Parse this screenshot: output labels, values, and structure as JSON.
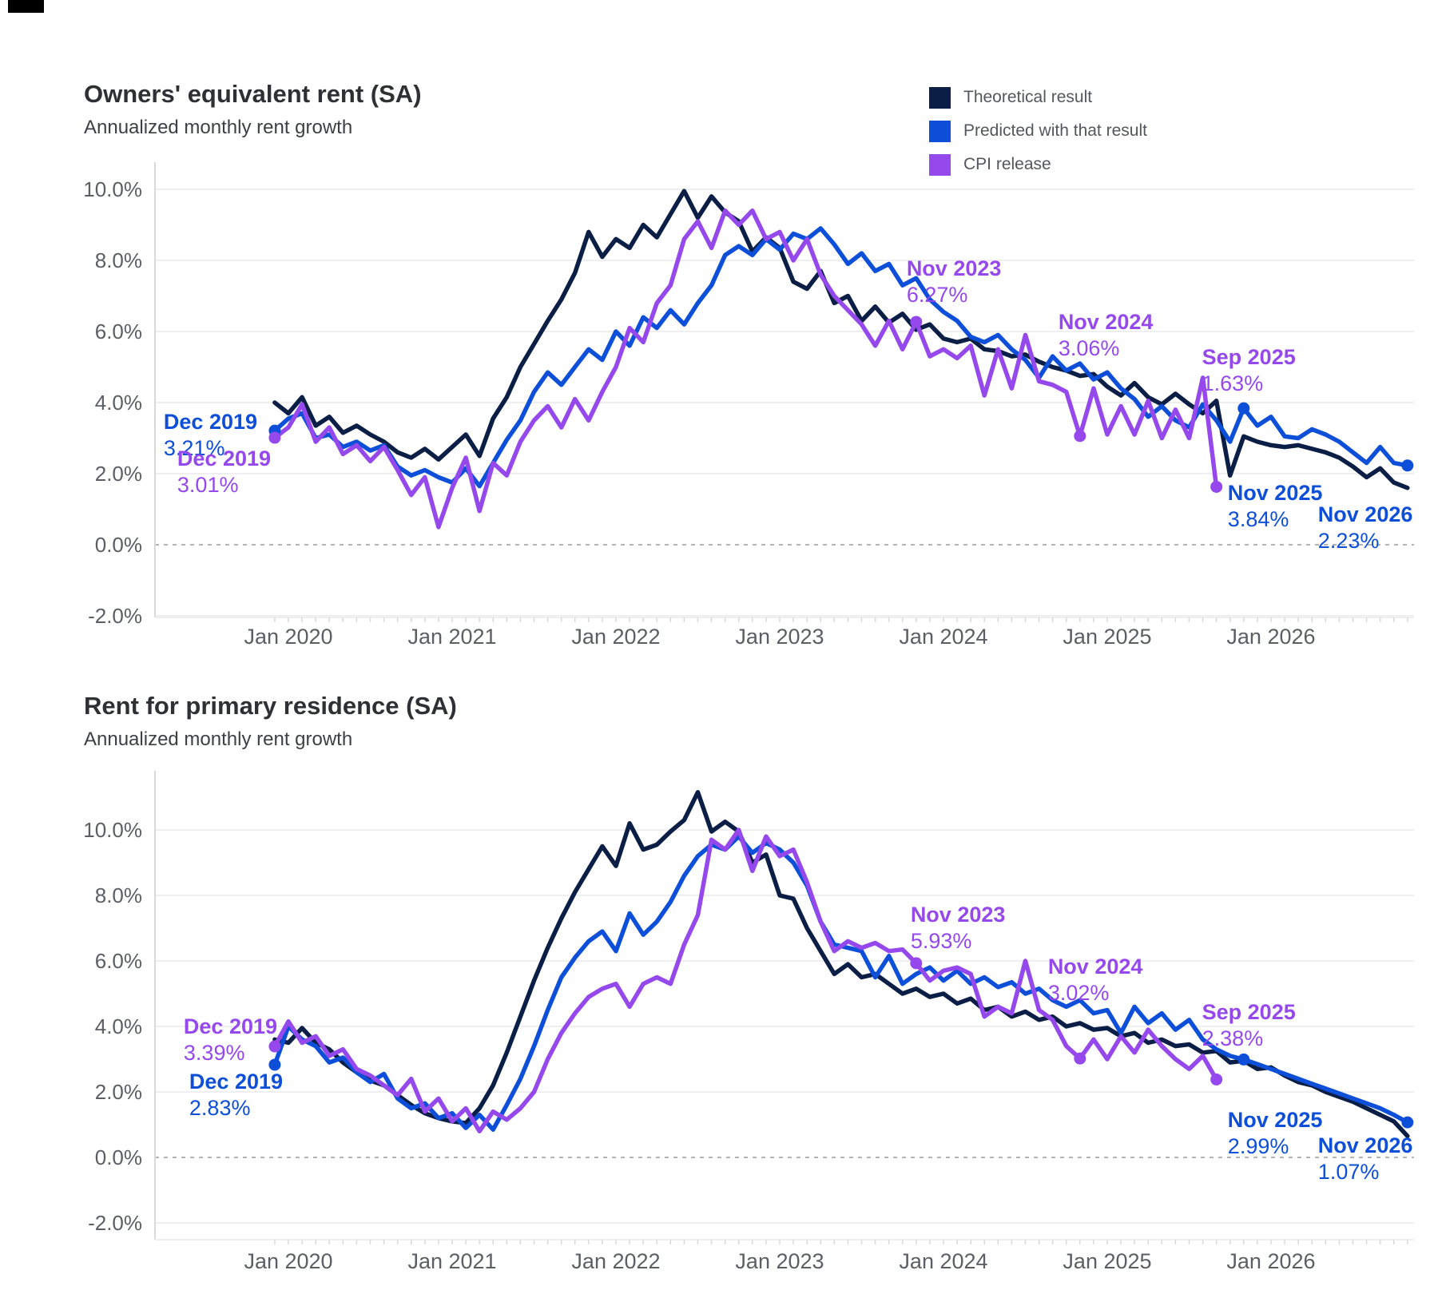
{
  "corner_mark": {
    "color": "#000000"
  },
  "legend": {
    "items": [
      {
        "key": "theoretical",
        "label": "Theoretical result",
        "color": "#0a1e46"
      },
      {
        "key": "predicted",
        "label": "Predicted with that result",
        "color": "#0d4fd9"
      },
      {
        "key": "cpi",
        "label": "CPI release",
        "color": "#9549ec"
      }
    ]
  },
  "axis_style": {
    "grid_color": "#efeff1",
    "zero_line_color": "#b3b3b8",
    "axis_line_color": "#d9d9dd",
    "tick_text_color": "#5b5e63"
  },
  "chart_data": [
    {
      "type": "line",
      "title": "Owners' equivalent rent (SA)",
      "subtitle": "Annualized monthly rent growth",
      "x_unit": "month",
      "x_start": "2019-12",
      "x_end": "2026-11",
      "x_tick_labels": [
        "Jan 2020",
        "Jan 2021",
        "Jan 2022",
        "Jan 2023",
        "Jan 2024",
        "Jan 2025",
        "Jan 2026"
      ],
      "y_tick_labels": [
        "10.0%",
        "8.0%",
        "6.0%",
        "4.0%",
        "2.0%",
        "0.0%",
        "-2.0%"
      ],
      "y_tick_values": [
        10,
        8,
        6,
        4,
        2,
        0,
        -2
      ],
      "ylim": [
        -2.5,
        11.0
      ],
      "grid": true,
      "zero_line": "dashed",
      "legend_position": "top-right",
      "series": [
        {
          "key": "theoretical",
          "name": "Theoretical result",
          "color": "#0a1e46",
          "values": [
            4.0,
            3.7,
            4.15,
            3.35,
            3.6,
            3.15,
            3.35,
            3.1,
            2.9,
            2.6,
            2.45,
            2.7,
            2.4,
            2.75,
            3.1,
            2.5,
            3.55,
            4.15,
            5.0,
            5.65,
            6.3,
            6.9,
            7.65,
            8.8,
            8.1,
            8.6,
            8.35,
            9.0,
            8.65,
            9.3,
            9.95,
            9.2,
            9.8,
            9.35,
            9.1,
            8.25,
            8.65,
            8.35,
            7.4,
            7.2,
            7.7,
            6.8,
            7.0,
            6.3,
            6.7,
            6.25,
            6.5,
            6.05,
            6.2,
            5.8,
            5.7,
            5.8,
            5.5,
            5.45,
            5.3,
            5.35,
            5.15,
            5.0,
            4.9,
            4.75,
            4.8,
            4.45,
            4.2,
            4.55,
            4.15,
            3.95,
            4.25,
            3.95,
            3.7,
            4.05,
            1.95,
            3.05,
            2.9,
            2.8,
            2.75,
            2.8,
            2.7,
            2.6,
            2.45,
            2.2,
            1.9,
            2.15,
            1.75,
            1.6
          ]
        },
        {
          "key": "predicted",
          "name": "Predicted with that result",
          "color": "#0d4fd9",
          "values": [
            3.21,
            3.55,
            3.7,
            3.0,
            3.1,
            2.75,
            2.9,
            2.65,
            2.8,
            2.2,
            1.95,
            2.1,
            1.9,
            1.75,
            2.15,
            1.65,
            2.3,
            2.95,
            3.5,
            4.3,
            4.85,
            4.5,
            5.0,
            5.5,
            5.2,
            6.0,
            5.6,
            6.4,
            6.1,
            6.6,
            6.2,
            6.8,
            7.3,
            8.15,
            8.4,
            8.15,
            8.6,
            8.3,
            8.75,
            8.6,
            8.9,
            8.45,
            7.9,
            8.2,
            7.7,
            7.9,
            7.3,
            7.5,
            6.9,
            6.55,
            6.3,
            5.85,
            5.7,
            5.9,
            5.5,
            5.2,
            4.7,
            5.3,
            4.9,
            5.1,
            4.65,
            4.85,
            4.4,
            4.1,
            3.6,
            3.9,
            3.5,
            3.3,
            3.95,
            3.5,
            2.9,
            3.84,
            3.35,
            3.6,
            3.05,
            3.0,
            3.25,
            3.1,
            2.9,
            2.6,
            2.3,
            2.75,
            2.3,
            2.23
          ]
        },
        {
          "key": "cpi",
          "name": "CPI release",
          "color": "#9549ec",
          "values": [
            3.01,
            3.3,
            3.95,
            2.9,
            3.3,
            2.55,
            2.8,
            2.35,
            2.75,
            2.1,
            1.4,
            1.9,
            0.5,
            1.6,
            2.45,
            0.95,
            2.3,
            1.95,
            2.9,
            3.5,
            3.9,
            3.3,
            4.1,
            3.5,
            4.3,
            5.0,
            6.1,
            5.7,
            6.8,
            7.3,
            8.6,
            9.1,
            8.35,
            9.4,
            9.0,
            9.4,
            8.6,
            8.8,
            8.0,
            8.6,
            7.6,
            7.0,
            6.6,
            6.2,
            5.6,
            6.3,
            5.5,
            6.27,
            5.3,
            5.5,
            5.25,
            5.6,
            4.2,
            5.5,
            4.4,
            5.9,
            4.6,
            4.5,
            4.3,
            3.06,
            4.4,
            3.1,
            3.9,
            3.1,
            4.05,
            3.0,
            3.8,
            3.0,
            4.7,
            1.63
          ]
        }
      ],
      "annotations": [
        {
          "label": "Dec 2019",
          "value_label": "3.21%",
          "month_index": 0,
          "value": 3.21,
          "series": "predicted",
          "dot": true
        },
        {
          "label": "Dec 2019",
          "value_label": "3.01%",
          "month_index": 0,
          "value": 3.01,
          "series": "cpi",
          "dot": true
        },
        {
          "label": "Nov 2023",
          "value_label": "6.27%",
          "month_index": 47,
          "value": 6.27,
          "series": "cpi",
          "dot": true
        },
        {
          "label": "Nov 2024",
          "value_label": "3.06%",
          "month_index": 59,
          "value": 3.06,
          "series": "cpi",
          "dot": true
        },
        {
          "label": "Sep 2025",
          "value_label": "1.63%",
          "month_index": 69,
          "value": 1.63,
          "series": "cpi",
          "dot": true
        },
        {
          "label": "Nov 2025",
          "value_label": "3.84%",
          "month_index": 71,
          "value": 3.84,
          "series": "predicted",
          "dot": true
        },
        {
          "label": "Nov 2026",
          "value_label": "2.23%",
          "month_index": 83,
          "value": 2.23,
          "series": "predicted",
          "dot": true
        }
      ]
    },
    {
      "type": "line",
      "title": "Rent for primary residence (SA)",
      "subtitle": "Annualized monthly rent growth",
      "x_unit": "month",
      "x_start": "2019-12",
      "x_end": "2026-11",
      "x_tick_labels": [
        "Jan 2020",
        "Jan 2021",
        "Jan 2022",
        "Jan 2023",
        "Jan 2024",
        "Jan 2025",
        "Jan 2026"
      ],
      "y_tick_labels": [
        "10.0%",
        "8.0%",
        "6.0%",
        "4.0%",
        "2.0%",
        "0.0%",
        "-2.0%"
      ],
      "y_tick_values": [
        10,
        8,
        6,
        4,
        2,
        0,
        -2
      ],
      "ylim": [
        -2.5,
        11.8
      ],
      "grid": true,
      "zero_line": "dashed",
      "series": [
        {
          "key": "theoretical",
          "name": "Theoretical result",
          "color": "#0a1e46",
          "values": [
            3.6,
            3.5,
            3.95,
            3.5,
            3.3,
            2.9,
            2.6,
            2.35,
            2.2,
            1.9,
            1.6,
            1.35,
            1.2,
            1.1,
            1.05,
            1.5,
            2.2,
            3.2,
            4.3,
            5.4,
            6.4,
            7.3,
            8.1,
            8.8,
            9.5,
            8.9,
            10.2,
            9.4,
            9.55,
            9.95,
            10.3,
            11.15,
            9.95,
            10.25,
            9.95,
            9.0,
            9.25,
            8.0,
            7.9,
            7.0,
            6.3,
            5.6,
            5.9,
            5.5,
            5.6,
            5.3,
            5.0,
            5.15,
            4.9,
            5.0,
            4.7,
            4.85,
            4.5,
            4.6,
            4.3,
            4.45,
            4.2,
            4.3,
            4.0,
            4.1,
            3.9,
            3.95,
            3.7,
            3.8,
            3.5,
            3.6,
            3.4,
            3.45,
            3.2,
            3.25,
            2.9,
            2.95,
            2.7,
            2.75,
            2.5,
            2.3,
            2.2,
            2.0,
            1.85,
            1.7,
            1.5,
            1.3,
            1.1,
            0.65
          ]
        },
        {
          "key": "predicted",
          "name": "Predicted with that result",
          "color": "#0d4fd9",
          "values": [
            2.83,
            4.0,
            3.6,
            3.4,
            2.9,
            3.05,
            2.6,
            2.3,
            2.55,
            1.8,
            1.5,
            1.65,
            1.2,
            1.35,
            0.9,
            1.3,
            0.85,
            1.6,
            2.4,
            3.4,
            4.5,
            5.5,
            6.1,
            6.6,
            6.9,
            6.3,
            7.45,
            6.8,
            7.2,
            7.8,
            8.6,
            9.2,
            9.55,
            9.4,
            9.8,
            9.3,
            9.6,
            9.4,
            9.0,
            8.3,
            7.2,
            6.5,
            6.4,
            6.3,
            5.5,
            6.15,
            5.3,
            5.6,
            5.8,
            5.4,
            5.7,
            5.3,
            5.5,
            5.2,
            5.35,
            5.0,
            5.15,
            4.8,
            4.6,
            4.8,
            4.4,
            4.5,
            3.8,
            4.6,
            4.1,
            4.4,
            3.9,
            4.2,
            3.6,
            3.3,
            3.1,
            2.99,
            2.85,
            2.7,
            2.55,
            2.4,
            2.25,
            2.1,
            1.95,
            1.8,
            1.65,
            1.5,
            1.3,
            1.07
          ]
        },
        {
          "key": "cpi",
          "name": "CPI release",
          "color": "#9549ec",
          "values": [
            3.39,
            4.15,
            3.5,
            3.7,
            3.1,
            3.3,
            2.7,
            2.5,
            2.2,
            1.9,
            2.4,
            1.4,
            1.8,
            1.1,
            1.5,
            0.8,
            1.4,
            1.15,
            1.5,
            2.0,
            3.0,
            3.8,
            4.4,
            4.9,
            5.15,
            5.3,
            4.6,
            5.3,
            5.5,
            5.3,
            6.5,
            7.4,
            9.7,
            9.4,
            10.0,
            8.75,
            9.8,
            9.2,
            9.4,
            8.4,
            7.2,
            6.3,
            6.6,
            6.4,
            6.55,
            6.3,
            6.35,
            5.93,
            5.4,
            5.7,
            5.8,
            5.6,
            4.3,
            4.6,
            4.4,
            6.0,
            4.5,
            4.2,
            3.4,
            3.02,
            3.6,
            3.0,
            3.7,
            3.2,
            3.9,
            3.4,
            3.0,
            2.7,
            3.1,
            2.38
          ]
        }
      ],
      "annotations": [
        {
          "label": "Dec 2019",
          "value_label": "3.39%",
          "month_index": 0,
          "value": 3.39,
          "series": "cpi",
          "dot": true
        },
        {
          "label": "Dec 2019",
          "value_label": "2.83%",
          "month_index": 0,
          "value": 2.83,
          "series": "predicted",
          "dot": true
        },
        {
          "label": "Nov 2023",
          "value_label": "5.93%",
          "month_index": 47,
          "value": 5.93,
          "series": "cpi",
          "dot": true
        },
        {
          "label": "Nov 2024",
          "value_label": "3.02%",
          "month_index": 59,
          "value": 3.02,
          "series": "cpi",
          "dot": true
        },
        {
          "label": "Sep 2025",
          "value_label": "2.38%",
          "month_index": 69,
          "value": 2.38,
          "series": "cpi",
          "dot": true
        },
        {
          "label": "Nov 2025",
          "value_label": "2.99%",
          "month_index": 71,
          "value": 2.99,
          "series": "predicted",
          "dot": true
        },
        {
          "label": "Nov 2026",
          "value_label": "1.07%",
          "month_index": 83,
          "value": 1.07,
          "series": "predicted",
          "dot": true
        }
      ]
    }
  ]
}
